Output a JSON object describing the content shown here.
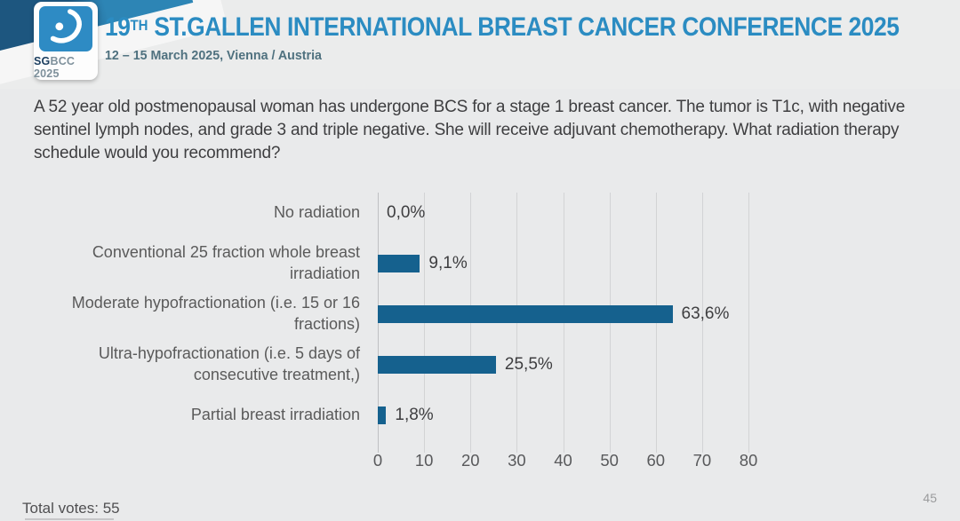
{
  "header": {
    "logo": {
      "text_bold": "SG",
      "text_rest": "BCC 2025",
      "icon_name": "sgbcc-breast-icon",
      "square_color": "#2e8bc4"
    },
    "title_num": "19",
    "title_sup": "TH",
    "title_rest": " ST.GALLEN INTERNATIONAL BREAST CANCER CONFERENCE 2025",
    "subtitle": "12 – 15 March 2025, Vienna / Austria",
    "accent_color": "#2b8cc2",
    "ribbon_dark_color": "#1d567f",
    "ribbon_light_color": "#2d85b5"
  },
  "question": "A 52 year old postmenopausal woman has undergone BCS for a stage 1 breast cancer.  The tumor is T1c, with negative sentinel lymph nodes, and grade 3 and triple negative.  She will receive adjuvant chemotherapy. What radiation therapy schedule would you recommend?",
  "chart_data": {
    "type": "bar",
    "orientation": "horizontal",
    "categories": [
      "No radiation",
      "Conventional 25 fraction whole breast irradiation",
      "Moderate hypofractionation (i.e. 15 or 16 fractions)",
      "Ultra-hypofractionation (i.e. 5 days of consecutive treatment,)",
      "Partial breast irradiation"
    ],
    "values": [
      0.0,
      9.1,
      63.6,
      25.5,
      1.8
    ],
    "value_labels": [
      "0,0%",
      "9,1%",
      "63,6%",
      "25,5%",
      "1,8%"
    ],
    "xlim": [
      0,
      80
    ],
    "x_ticks": [
      0,
      10,
      20,
      30,
      40,
      50,
      60,
      70,
      80
    ],
    "grid": true,
    "legend": false,
    "bar_color": "#15618e",
    "title": "",
    "xlabel": "",
    "ylabel": ""
  },
  "footer": {
    "total_votes": "Total votes: 55",
    "page_number": "45"
  }
}
